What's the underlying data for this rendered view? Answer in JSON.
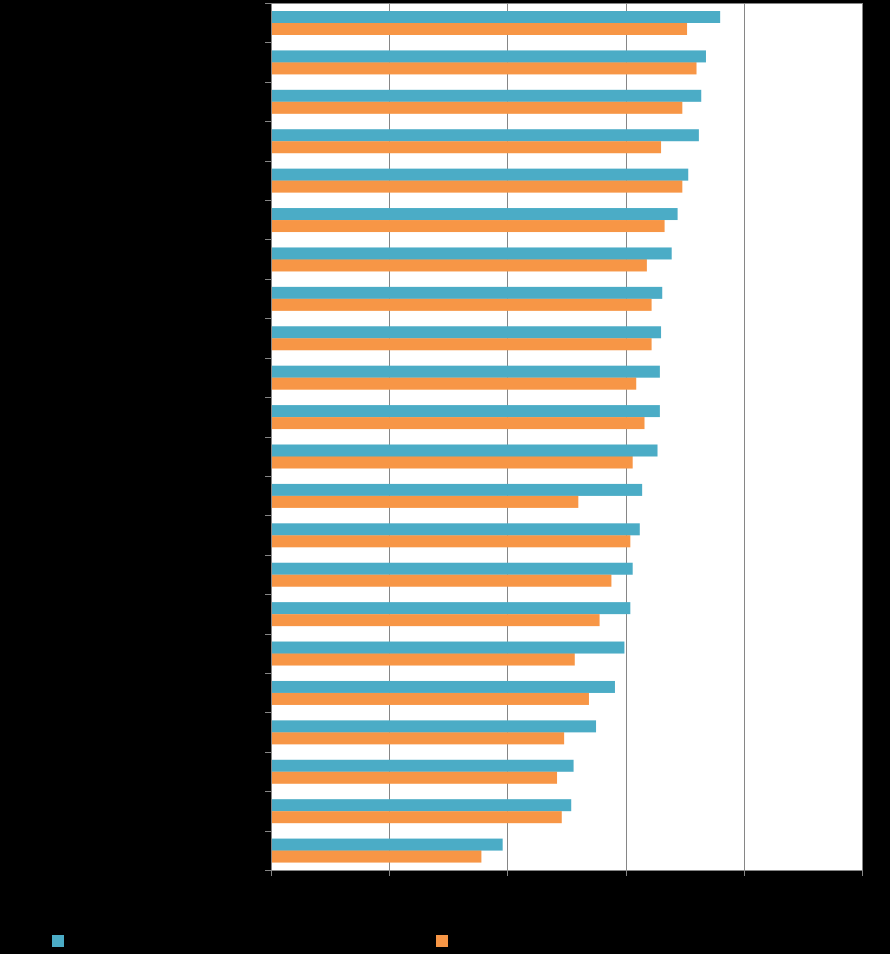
{
  "chart_data": {
    "type": "bar",
    "orientation": "horizontal",
    "categories": [
      "",
      "",
      "",
      "",
      "",
      "",
      "",
      "",
      "",
      "",
      "",
      "",
      "",
      "",
      "",
      "",
      "",
      "",
      "",
      "",
      "",
      ""
    ],
    "series": [
      {
        "color": "#4bacc6",
        "values": [
          38.0,
          36.8,
          36.4,
          36.2,
          35.3,
          34.4,
          33.9,
          33.1,
          33.0,
          32.9,
          32.9,
          32.7,
          31.4,
          31.2,
          30.6,
          30.4,
          29.9,
          29.1,
          27.5,
          25.6,
          25.4,
          19.6
        ]
      },
      {
        "color": "#f79646",
        "values": [
          35.2,
          36.0,
          34.8,
          33.0,
          34.8,
          33.3,
          31.8,
          32.2,
          32.2,
          30.9,
          31.6,
          30.6,
          26.0,
          30.4,
          28.8,
          27.8,
          25.7,
          26.9,
          24.8,
          24.2,
          24.6,
          17.8
        ]
      }
    ],
    "xlim": [
      0,
      50
    ],
    "grid": true,
    "legend_position": "bottom"
  }
}
